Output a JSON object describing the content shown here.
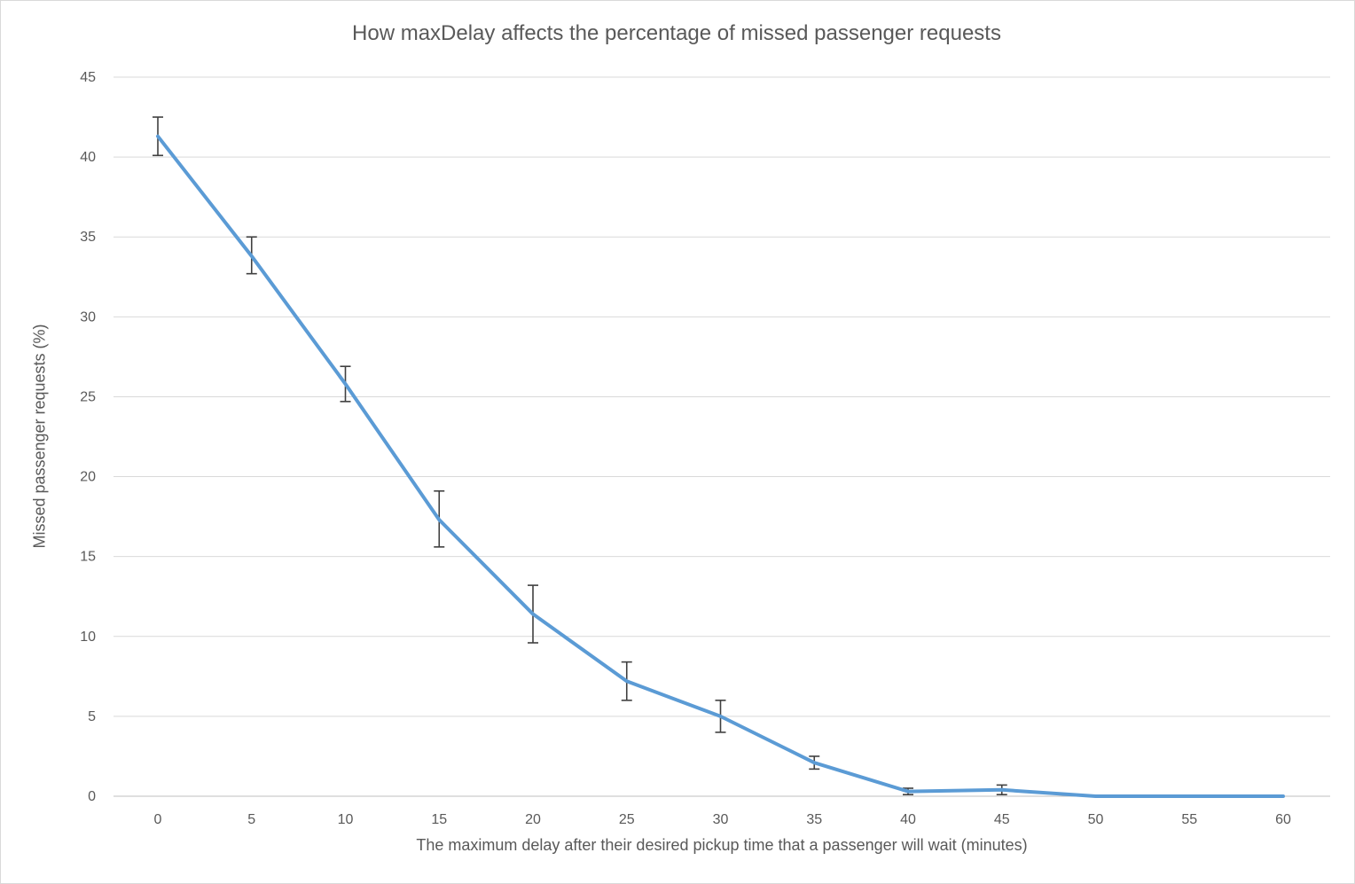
{
  "chart_data": {
    "type": "line",
    "title": "How maxDelay affects the percentage of missed passenger requests",
    "xlabel": "The maximum delay after their desired pickup time that a passenger will wait (minutes)",
    "ylabel": "Missed passenger requests (%)",
    "x": [
      0,
      5,
      10,
      15,
      20,
      25,
      30,
      35,
      40,
      45,
      50,
      55,
      60
    ],
    "x_tick_labels": [
      "0",
      "5",
      "10",
      "15",
      "20",
      "25",
      "30",
      "35",
      "40",
      "45",
      "50",
      "55",
      "60"
    ],
    "y_ticks": [
      0,
      5,
      10,
      15,
      20,
      25,
      30,
      35,
      40,
      45
    ],
    "y_tick_labels": [
      "0",
      "5",
      "10",
      "15",
      "20",
      "25",
      "30",
      "35",
      "40",
      "45"
    ],
    "ylim": [
      0,
      45
    ],
    "grid": "horizontal",
    "legend": "none",
    "series": [
      {
        "values": [
          41.3,
          33.8,
          25.8,
          17.3,
          11.4,
          7.2,
          5.0,
          2.1,
          0.3,
          0.4,
          0,
          0,
          0
        ],
        "error_low": [
          1.2,
          1.1,
          1.1,
          1.7,
          1.8,
          1.2,
          1.0,
          0.4,
          0.2,
          0.3,
          0,
          0,
          0
        ],
        "error_high": [
          1.2,
          1.2,
          1.1,
          1.8,
          1.8,
          1.2,
          1.0,
          0.4,
          0.2,
          0.3,
          0,
          0,
          0
        ],
        "color": "#5b9bd5"
      }
    ],
    "colors": {
      "line": "#5b9bd5",
      "error_bar": "#404040",
      "gridline": "#d9d9d9",
      "text": "#595959"
    }
  }
}
